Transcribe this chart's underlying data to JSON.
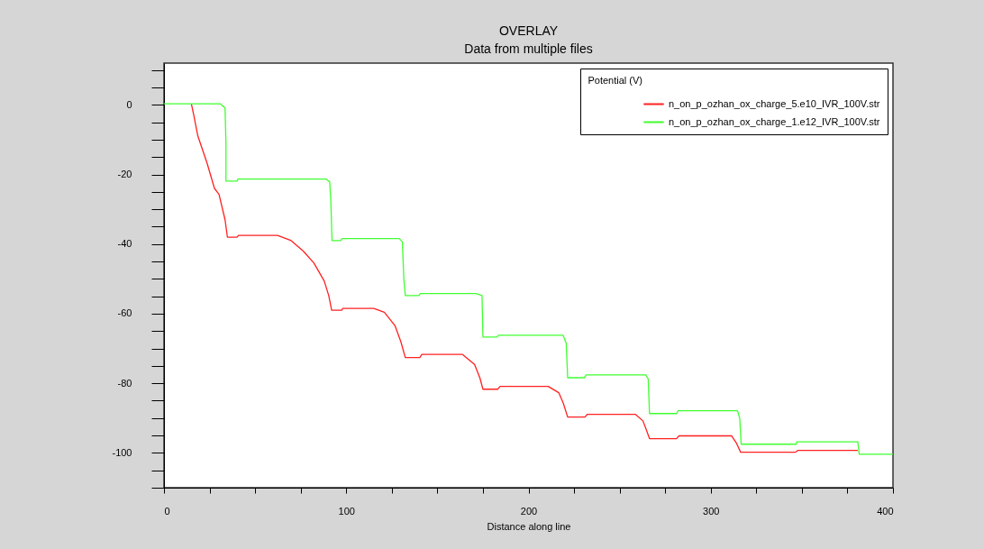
{
  "chart_data": {
    "type": "line",
    "title": "OVERLAY",
    "subtitle": "Data from multiple files",
    "xlabel": "Distance along line",
    "legend_title": "Potential (V)",
    "legend": "top right",
    "grid": false,
    "xlim": [
      0,
      400
    ],
    "ylim": [
      -110,
      12
    ],
    "xticks": [
      0,
      {
        "value": 25,
        "label": null
      },
      {
        "value": 50,
        "label": null
      },
      {
        "value": 75,
        "label": null
      },
      100,
      {
        "value": 125,
        "label": null
      },
      {
        "value": 150,
        "label": null
      },
      {
        "value": 175,
        "label": null
      },
      200,
      {
        "value": 225,
        "label": null
      },
      {
        "value": 250,
        "label": null
      },
      {
        "value": 275,
        "label": null
      },
      300,
      {
        "value": 325,
        "label": null
      },
      {
        "value": 350,
        "label": null
      },
      {
        "value": 375,
        "label": null
      },
      400
    ],
    "yticks": [
      {
        "value": 10,
        "label": null
      },
      {
        "value": 5,
        "label": null
      },
      0,
      {
        "value": -5,
        "label": null
      },
      {
        "value": -10,
        "label": null
      },
      {
        "value": -15,
        "label": null
      },
      -20,
      {
        "value": -25,
        "label": null
      },
      {
        "value": -30,
        "label": null
      },
      {
        "value": -35,
        "label": null
      },
      -40,
      {
        "value": -45,
        "label": null
      },
      {
        "value": -50,
        "label": null
      },
      {
        "value": -55,
        "label": null
      },
      -60,
      {
        "value": -65,
        "label": null
      },
      {
        "value": -70,
        "label": null
      },
      {
        "value": -75,
        "label": null
      },
      -80,
      {
        "value": -85,
        "label": null
      },
      {
        "value": -90,
        "label": null
      },
      {
        "value": -95,
        "label": null
      },
      -100,
      {
        "value": -105,
        "label": null
      },
      {
        "value": -110,
        "label": null
      }
    ],
    "series": [
      {
        "name": "n_on_p_ozhan_ox_charge_5.e10_IVR_100V.str",
        "color": "#ff2020",
        "x": [
          15,
          16.2,
          18.6,
          23.6,
          27.7,
          30.2,
          33.5,
          34.8,
          40.1,
          40.9,
          62.3,
          69.8,
          76.4,
          82.2,
          87.9,
          90.4,
          92,
          97.5,
          98.1,
          115.1,
          120.9,
          126.7,
          130,
          132.4,
          140.4,
          141.5,
          163.8,
          170.4,
          173.3,
          175,
          183.1,
          184.4,
          210.8,
          216.6,
          219.1,
          221.5,
          231,
          232.2,
          258.6,
          262.8,
          264.7,
          266.4,
          281.2,
          282.6,
          311.4,
          314.2,
          316.4,
          346.6,
          347.7,
          380.7
        ],
        "values": [
          0.3,
          -2.6,
          -9,
          -16.7,
          -24,
          -25.7,
          -33,
          -38,
          -38,
          -37.5,
          -37.5,
          -39,
          -42,
          -45.4,
          -50.6,
          -54.8,
          -59,
          -59,
          -58.5,
          -58.5,
          -59.6,
          -63.4,
          -68.1,
          -72.6,
          -72.6,
          -71.7,
          -71.7,
          -74.6,
          -78.4,
          -81.7,
          -81.7,
          -80.9,
          -80.9,
          -82.7,
          -85.7,
          -89.7,
          -89.7,
          -88.9,
          -88.9,
          -90.8,
          -93.4,
          -95.9,
          -95.9,
          -95.1,
          -95.1,
          -97.3,
          -99.8,
          -99.8,
          -99.3,
          -99.3
        ]
      },
      {
        "name": "n_on_p_ozhan_ox_charge_1.e12_IVR_100V.str",
        "color": "#40ff30",
        "x": [
          0,
          31,
          33.5,
          34,
          34,
          40,
          40.6,
          88.7,
          90.9,
          91.5,
          92.2,
          97,
          97.8,
          129.1,
          130.8,
          131.6,
          132.4,
          139.9,
          140.7,
          171.2,
          174.5,
          175,
          182.7,
          183.5,
          219,
          220.7,
          221.5,
          230.6,
          231.7,
          264.4,
          265.7,
          266.4,
          281.2,
          282.1,
          314.7,
          315.9,
          316.7,
          346.9,
          347.2,
          380.7,
          381.5,
          400
        ],
        "values": [
          0.3,
          0.3,
          -0.9,
          -11,
          -21.9,
          -21.9,
          -21.3,
          -21.3,
          -22.1,
          -27,
          -39,
          -39,
          -38.4,
          -38.4,
          -39.4,
          -50.1,
          -54.8,
          -54.8,
          -54.2,
          -54.2,
          -54.8,
          -66.7,
          -66.7,
          -66.2,
          -66.2,
          -68.5,
          -78.4,
          -78.4,
          -77.6,
          -77.6,
          -78.8,
          -88.7,
          -88.7,
          -87.9,
          -87.9,
          -90,
          -97.5,
          -97.5,
          -96.8,
          -96.8,
          -100.4,
          -100.4
        ]
      }
    ]
  }
}
